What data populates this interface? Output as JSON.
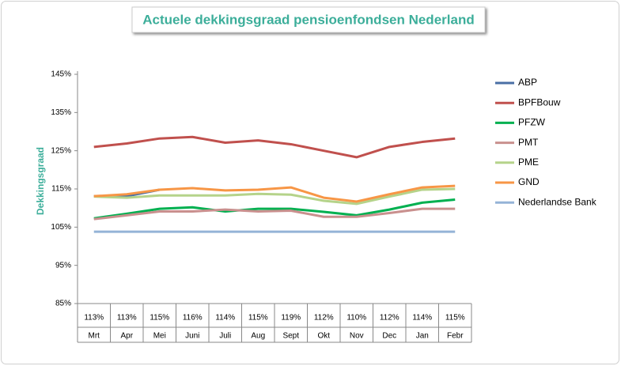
{
  "chart_data": {
    "type": "line",
    "title": "Actuele dekkingsgraad pensioenfondsen Nederland",
    "y_label": "Dekkingsgraad",
    "categories": [
      "Mrt",
      "Apr",
      "Mei",
      "Juni",
      "Juli",
      "Aug",
      "Sept",
      "Okt",
      "Nov",
      "Dec",
      "Jan",
      "Febr"
    ],
    "data_table": [
      "113%",
      "113%",
      "115%",
      "116%",
      "114%",
      "115%",
      "119%",
      "112%",
      "110%",
      "112%",
      "114%",
      "115%"
    ],
    "ylim": [
      85,
      145
    ],
    "yticks": [
      {
        "value": 85,
        "label": "85%"
      },
      {
        "value": 95,
        "label": "95%"
      },
      {
        "value": 105,
        "label": "105%"
      },
      {
        "value": 115,
        "label": "115%"
      },
      {
        "value": 125,
        "label": "125%"
      },
      {
        "value": 135,
        "label": "135%"
      },
      {
        "value": 145,
        "label": "145%"
      }
    ],
    "legend": "right",
    "series": [
      {
        "name": "ABP",
        "color": "#4a6fa5",
        "values": [
          113.1,
          113.1,
          114.8,
          null,
          null,
          null,
          null,
          null,
          null,
          null,
          null,
          null
        ]
      },
      {
        "name": "BPFBouw",
        "color": "#c0504d",
        "values": [
          126.0,
          126.9,
          128.2,
          128.6,
          127.1,
          127.7,
          126.7,
          125.0,
          123.3,
          126.0,
          127.3,
          128.2
        ]
      },
      {
        "name": "PFZW",
        "color": "#00b050",
        "values": [
          107.3,
          108.5,
          109.8,
          110.2,
          109.1,
          109.8,
          109.8,
          109.0,
          108.1,
          109.6,
          111.4,
          112.2
        ]
      },
      {
        "name": "PMT",
        "color": "#c9908e",
        "values": [
          107.1,
          108.1,
          109.1,
          109.1,
          109.6,
          109.1,
          109.3,
          107.7,
          107.7,
          108.7,
          109.8,
          109.8
        ]
      },
      {
        "name": "PME",
        "color": "#b5d38a",
        "values": [
          113.0,
          112.7,
          113.3,
          113.3,
          113.3,
          113.7,
          113.5,
          111.9,
          111.1,
          113.0,
          114.8,
          115.0
        ]
      },
      {
        "name": "GND",
        "color": "#f79646",
        "values": [
          113.1,
          113.6,
          114.8,
          115.2,
          114.6,
          114.8,
          115.4,
          112.7,
          111.7,
          113.6,
          115.4,
          115.8
        ]
      },
      {
        "name": "Nederlandse Bank",
        "color": "#95b3d7",
        "values": [
          103.8,
          103.8,
          103.8,
          103.8,
          103.8,
          103.8,
          103.8,
          103.8,
          103.8,
          103.8,
          103.8,
          103.8
        ]
      }
    ]
  }
}
